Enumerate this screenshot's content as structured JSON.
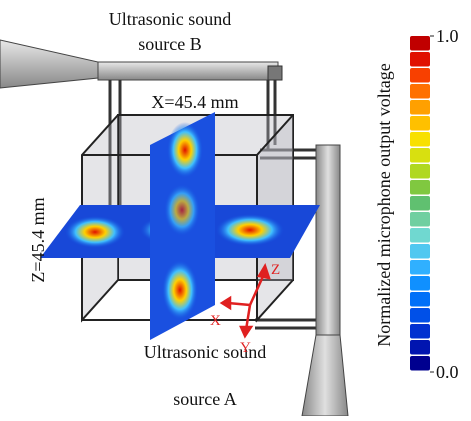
{
  "labels": {
    "source_b": [
      "Ultrasonic sound",
      "source B"
    ],
    "source_a": [
      "Ultrasonic sound",
      "source A"
    ],
    "x_size": "X=45.4 mm",
    "z_size": "Z=45.4 mm",
    "axes": {
      "z": "Z",
      "x": "X",
      "y": "Y"
    }
  },
  "colorbar": {
    "label": "Normalized microphone output voltage",
    "range": [
      0,
      1
    ],
    "ticks": [
      {
        "value": 1,
        "label": "1.0"
      },
      {
        "value": 0,
        "label": "0.0"
      }
    ],
    "colors": [
      "#00008f",
      "#0015b0",
      "#0030d0",
      "#0050e8",
      "#0070f8",
      "#1090ff",
      "#30b0ff",
      "#50c8f0",
      "#70d8d0",
      "#70cfa0",
      "#60c070",
      "#80c840",
      "#b0d820",
      "#d8e010",
      "#f8e000",
      "#ffc000",
      "#ffa000",
      "#ff7000",
      "#f84000",
      "#e01000",
      "#c00000"
    ]
  }
}
